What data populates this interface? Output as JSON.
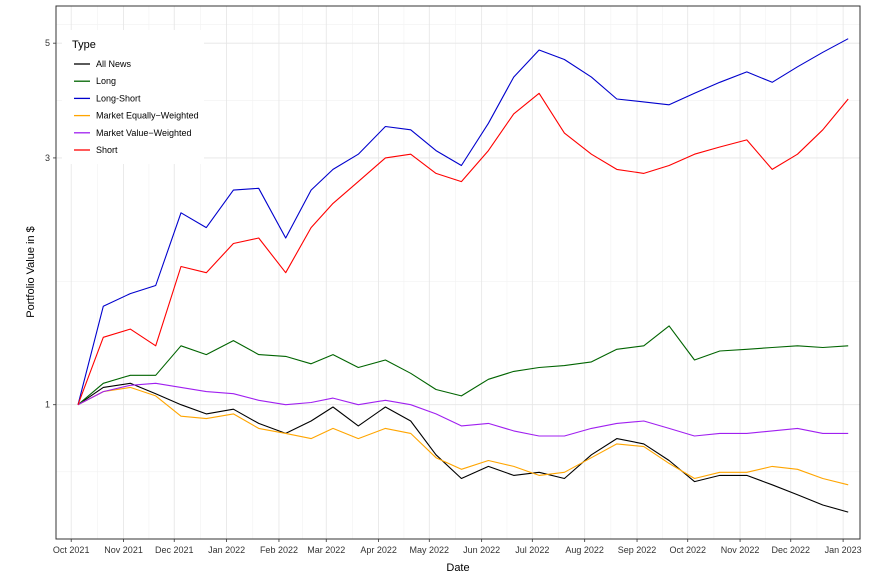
{
  "chart_data": {
    "type": "line",
    "xlabel": "Date",
    "ylabel": "Portfolio Value in $",
    "y_scale": "log",
    "ylim": [
      0.55,
      5.9
    ],
    "xlim": [
      "2021-09-22",
      "2023-01-11"
    ],
    "y_ticks": [
      1,
      3,
      5
    ],
    "y_tick_labels": [
      "1",
      "3",
      "5"
    ],
    "x_ticks": [
      "2021-10-01",
      "2021-11-01",
      "2021-12-01",
      "2022-01-01",
      "2022-02-01",
      "2022-03-01",
      "2022-04-01",
      "2022-05-01",
      "2022-06-01",
      "2022-07-01",
      "2022-08-01",
      "2022-09-01",
      "2022-10-01",
      "2022-11-01",
      "2022-12-01",
      "2023-01-01"
    ],
    "x_tick_labels": [
      "Oct 2021",
      "Nov 2021",
      "Dec 2021",
      "Jan 2022",
      "Feb 2022",
      "Mar 2022",
      "Apr 2022",
      "May 2022",
      "Jun 2022",
      "Jul 2022",
      "Aug 2022",
      "Sep 2022",
      "Oct 2022",
      "Nov 2022",
      "Dec 2022",
      "Jan 2023"
    ],
    "grid": true,
    "legend": {
      "title": "Type",
      "position": "top-left"
    },
    "x": [
      "2021-10-05",
      "2021-10-20",
      "2021-11-05",
      "2021-11-20",
      "2021-12-05",
      "2021-12-20",
      "2022-01-05",
      "2022-01-20",
      "2022-02-05",
      "2022-02-20",
      "2022-03-05",
      "2022-03-20",
      "2022-04-05",
      "2022-04-20",
      "2022-05-05",
      "2022-05-20",
      "2022-06-05",
      "2022-06-20",
      "2022-07-05",
      "2022-07-20",
      "2022-08-05",
      "2022-08-20",
      "2022-09-05",
      "2022-09-20",
      "2022-10-05",
      "2022-10-20",
      "2022-11-05",
      "2022-11-20",
      "2022-12-05",
      "2022-12-20",
      "2023-01-04"
    ],
    "series": [
      {
        "name": "All News",
        "color": "#000000",
        "values": [
          1.0,
          1.08,
          1.1,
          1.05,
          1.0,
          0.96,
          0.98,
          0.92,
          0.88,
          0.93,
          0.99,
          0.91,
          0.99,
          0.93,
          0.8,
          0.72,
          0.76,
          0.73,
          0.74,
          0.72,
          0.8,
          0.86,
          0.84,
          0.78,
          0.71,
          0.73,
          0.73,
          0.7,
          0.67,
          0.64,
          0.62
        ]
      },
      {
        "name": "Long",
        "color": "#006400",
        "values": [
          1.0,
          1.1,
          1.14,
          1.14,
          1.3,
          1.25,
          1.33,
          1.25,
          1.24,
          1.2,
          1.25,
          1.18,
          1.22,
          1.15,
          1.07,
          1.04,
          1.12,
          1.16,
          1.18,
          1.19,
          1.21,
          1.28,
          1.3,
          1.42,
          1.22,
          1.27,
          1.28,
          1.29,
          1.3,
          1.29,
          1.3
        ]
      },
      {
        "name": "Long-Short",
        "color": "#0000CD",
        "values": [
          1.0,
          1.55,
          1.64,
          1.7,
          2.35,
          2.2,
          2.6,
          2.62,
          2.1,
          2.6,
          2.85,
          3.05,
          3.45,
          3.4,
          3.1,
          2.9,
          3.5,
          4.3,
          4.85,
          4.65,
          4.3,
          3.9,
          3.85,
          3.8,
          4.0,
          4.2,
          4.4,
          4.2,
          4.5,
          4.8,
          5.1
        ]
      },
      {
        "name": "Market Equally−Weighted",
        "color": "#FFA500",
        "values": [
          1.0,
          1.06,
          1.08,
          1.04,
          0.95,
          0.94,
          0.96,
          0.9,
          0.88,
          0.86,
          0.9,
          0.86,
          0.9,
          0.88,
          0.79,
          0.75,
          0.78,
          0.76,
          0.73,
          0.74,
          0.79,
          0.84,
          0.83,
          0.77,
          0.72,
          0.74,
          0.74,
          0.76,
          0.75,
          0.72,
          0.7
        ]
      },
      {
        "name": "Market Value−Weighted",
        "color": "#A020F0",
        "values": [
          1.0,
          1.06,
          1.09,
          1.1,
          1.08,
          1.06,
          1.05,
          1.02,
          1.0,
          1.01,
          1.03,
          1.0,
          1.02,
          1.0,
          0.96,
          0.91,
          0.92,
          0.89,
          0.87,
          0.87,
          0.9,
          0.92,
          0.93,
          0.9,
          0.87,
          0.88,
          0.88,
          0.89,
          0.9,
          0.88,
          0.88
        ]
      },
      {
        "name": "Short",
        "color": "#FF0000",
        "values": [
          1.0,
          1.35,
          1.4,
          1.3,
          1.85,
          1.8,
          2.05,
          2.1,
          1.8,
          2.2,
          2.45,
          2.7,
          3.0,
          3.05,
          2.8,
          2.7,
          3.1,
          3.65,
          4.0,
          3.35,
          3.05,
          2.85,
          2.8,
          2.9,
          3.05,
          3.15,
          3.25,
          2.85,
          3.05,
          3.4,
          3.9
        ]
      }
    ]
  }
}
